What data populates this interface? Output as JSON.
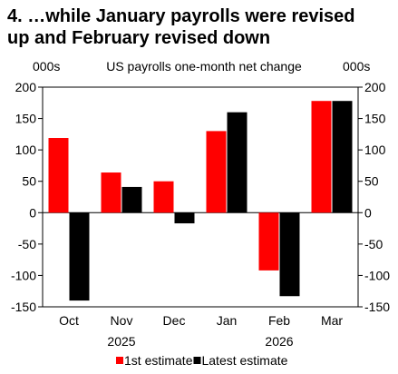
{
  "title_line1": "4. …while January payrolls were revised",
  "title_line2": "up and February revised down",
  "chart_data": {
    "type": "bar",
    "subtitle": "US payrolls one-month net change",
    "y_unit_left": "000s",
    "y_unit_right": "000s",
    "categories": [
      "Oct",
      "Nov",
      "Dec",
      "Jan",
      "Feb",
      "Mar"
    ],
    "year_labels": [
      {
        "after_category": "Nov",
        "label": "2025"
      },
      {
        "after_category": "Feb",
        "label": "2026"
      }
    ],
    "series": [
      {
        "name": "1st estimate",
        "color": "#ff0000",
        "values": [
          119,
          64,
          50,
          130,
          -92,
          178
        ]
      },
      {
        "name": "Latest estimate",
        "color": "#000000",
        "values": [
          -140,
          41,
          -17,
          160,
          -133,
          178
        ]
      }
    ],
    "ylim": [
      -150,
      200
    ],
    "yticks": [
      -150,
      -100,
      -50,
      0,
      50,
      100,
      150,
      200
    ],
    "legend_position": "bottom",
    "grid": false
  }
}
